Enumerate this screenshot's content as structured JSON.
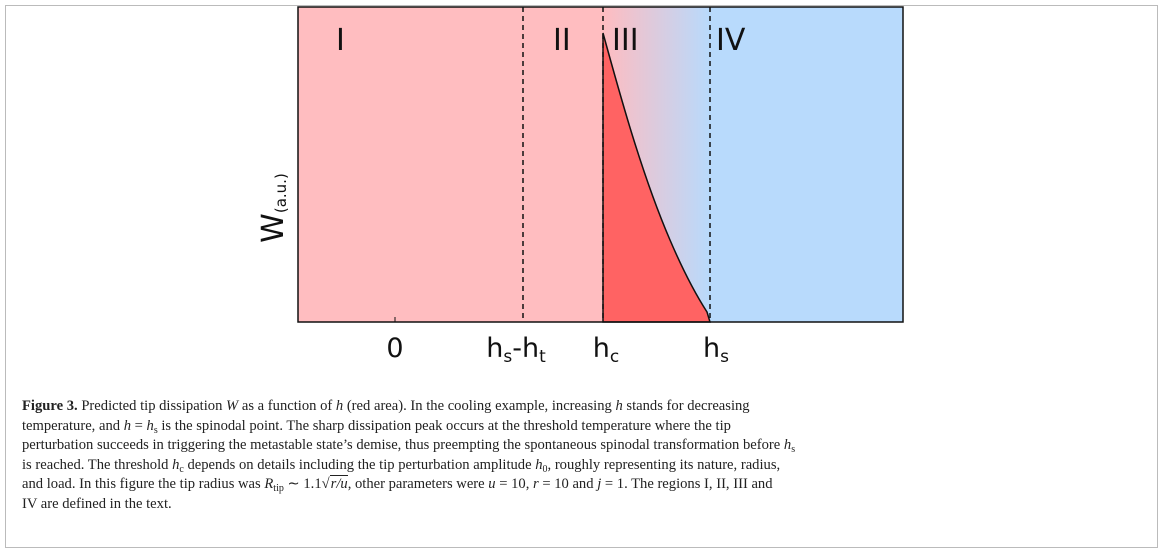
{
  "figure": {
    "regions": [
      "I",
      "II",
      "III",
      "IV"
    ],
    "y_label": {
      "base": "W",
      "sub": "(a.u.)"
    },
    "x_labels": [
      {
        "base": "0"
      },
      {
        "base": "h",
        "sub": "s",
        "rest": "-h",
        "sub2": "t"
      },
      {
        "base": "h",
        "sub": "c"
      },
      {
        "base": "h",
        "sub": "s"
      }
    ]
  },
  "caption": {
    "label": "Figure 3.",
    "lines": [
      [
        " Predicted tip dissipation ",
        {
          "i": "W"
        },
        " as a function of ",
        {
          "i": "h"
        },
        " (red area). In the cooling example, increasing ",
        {
          "i": "h"
        },
        " stands for decreasing"
      ],
      [
        "temperature, and ",
        {
          "i": "h"
        },
        " = ",
        {
          "i": "h",
          "sub": "s"
        },
        " is the spinodal point. The sharp dissipation peak occurs at the threshold temperature where the tip"
      ],
      [
        "perturbation succeeds in triggering the metastable state’s demise, thus preempting the spontaneous spinodal transformation before ",
        {
          "i": "h",
          "sub": "s"
        }
      ],
      [
        "is reached. The threshold ",
        {
          "i": "h",
          "sub": "c"
        },
        " depends on details including the tip perturbation amplitude ",
        {
          "i": "h",
          "sub": "0"
        },
        ", roughly representing its nature, radius,"
      ],
      [
        "and load. In this figure the tip radius was ",
        {
          "i": "R",
          "sub": "tip"
        },
        " ∼ 1.1",
        {
          "sqrt": "r/u"
        },
        ", other parameters were ",
        {
          "i": "u"
        },
        " = 10, ",
        {
          "i": "r"
        },
        " = 10 and ",
        {
          "i": "j"
        },
        " = 1. The regions I, II, III and"
      ],
      [
        "IV are defined in the text."
      ]
    ]
  }
}
